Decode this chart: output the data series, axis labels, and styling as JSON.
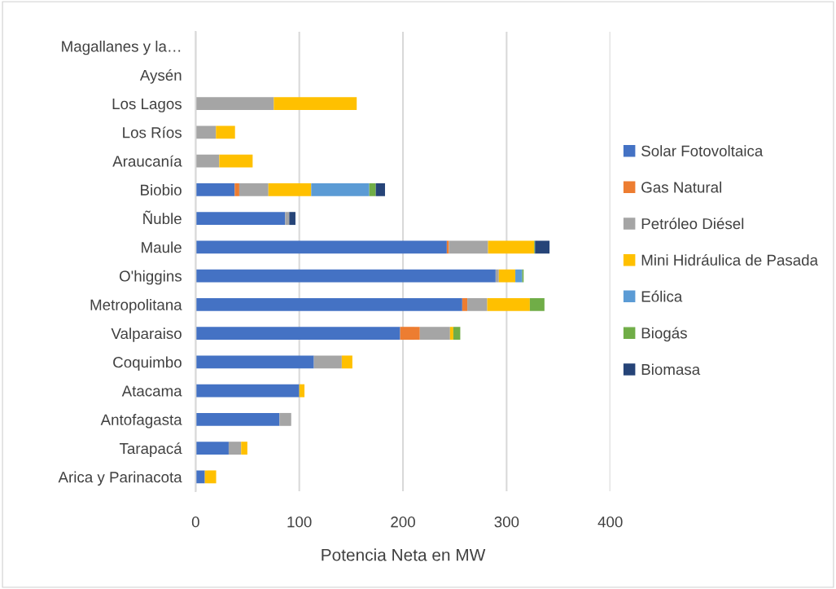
{
  "chart_data": {
    "type": "bar",
    "orientation": "horizontal",
    "stacked": true,
    "xlabel": "Potencia Neta en MW",
    "categories": [
      "Magallanes y la…",
      "Aysén",
      "Los Lagos",
      "Los Ríos",
      "Araucanía",
      "Biobio",
      "Ñuble",
      "Maule",
      "O'higgins",
      "Metropolitana",
      "Valparaiso",
      "Coquimbo",
      "Atacama",
      "Antofagasta",
      "Tarapacá",
      "Arica y Parinacota"
    ],
    "series": [
      {
        "name": "Solar Fotovoltaica",
        "color": "#4472c4",
        "values": [
          null,
          null,
          null,
          null,
          null,
          37.7,
          86.4,
          242.3,
          289.4,
          257.2,
          197.3,
          114.1,
          100,
          80.9,
          31.9,
          8.9
        ]
      },
      {
        "name": "Gas Natural",
        "color": "#ed7d31",
        "values": [
          null,
          null,
          null,
          null,
          null,
          4.4,
          null,
          2.1,
          null,
          4.9,
          19,
          null,
          null,
          null,
          null,
          null
        ]
      },
      {
        "name": "Petróleo Diésel",
        "color": "#a5a5a5",
        "values": [
          null,
          null,
          75.4,
          19.6,
          22.8,
          28.1,
          3.9,
          37.7,
          3.1,
          19.2,
          29.1,
          26.9,
          null,
          11.3,
          12,
          null
        ]
      },
      {
        "name": "Mini Hidráulica de Pasada",
        "color": "#ffc000",
        "values": [
          null,
          null,
          80,
          18.4,
          32.2,
          41.3,
          null,
          44.5,
          15.9,
          41.1,
          3.2,
          10.2,
          5,
          null,
          6,
          10.9
        ]
      },
      {
        "name": "Eólica",
        "color": "#5b9bd5",
        "values": [
          null,
          null,
          null,
          null,
          null,
          56,
          null,
          null,
          6.7,
          null,
          null,
          null,
          null,
          null,
          null,
          null
        ]
      },
      {
        "name": "Biogás",
        "color": "#70ad47",
        "values": [
          null,
          null,
          null,
          null,
          null,
          6.3,
          null,
          0.8,
          1.3,
          14.1,
          6.7,
          null,
          null,
          null,
          null,
          null
        ]
      },
      {
        "name": "Biomasa",
        "color": "#264478",
        "values": [
          null,
          null,
          null,
          null,
          null,
          8.9,
          6,
          14,
          null,
          null,
          null,
          null,
          null,
          null,
          null,
          null
        ]
      }
    ],
    "xlim": [
      0,
      400
    ],
    "xticks": [
      0,
      100,
      200,
      300,
      400
    ],
    "grid": "x",
    "legend": "right"
  }
}
